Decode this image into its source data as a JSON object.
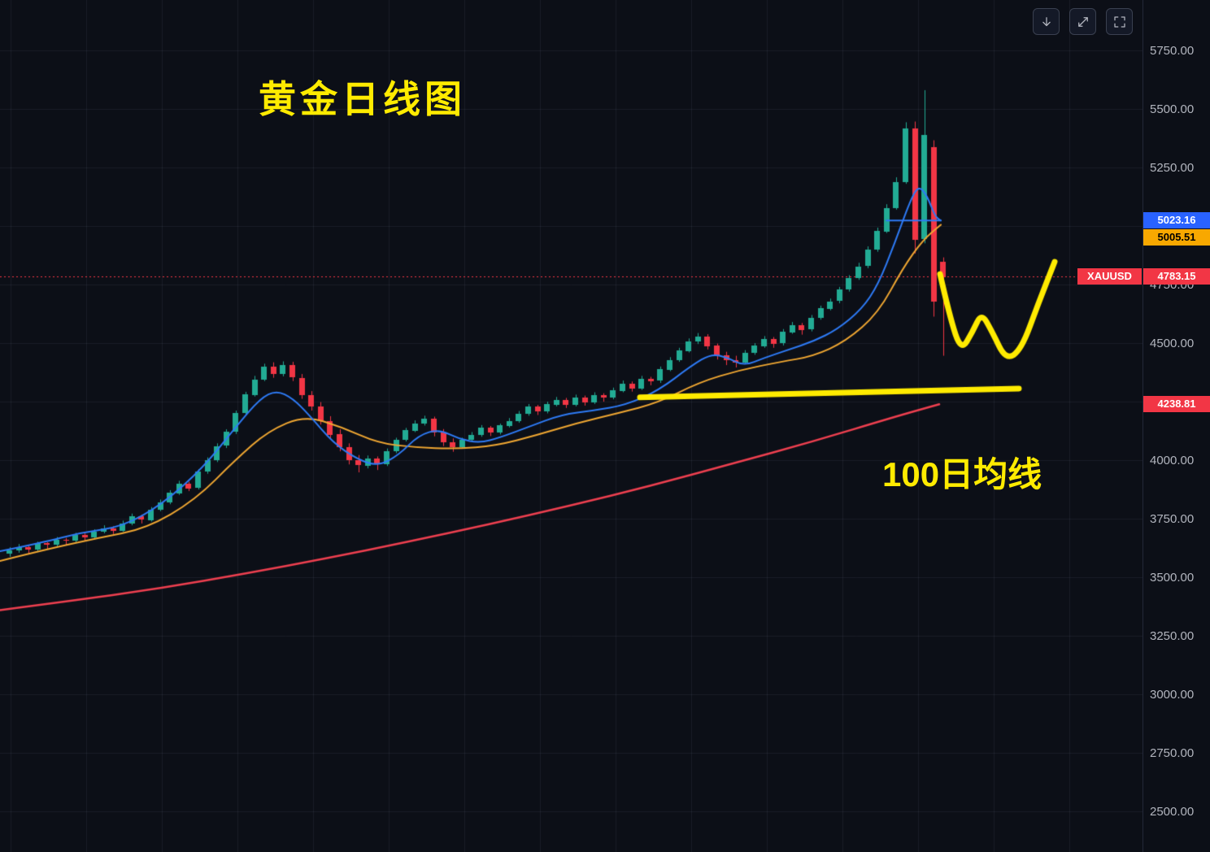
{
  "annotations": {
    "title": "黄金日线图",
    "ma_label": "100日均线"
  },
  "toolbar": {
    "buttons": [
      {
        "name": "scroll-down",
        "icon": "arrow-down-icon"
      },
      {
        "name": "maximize",
        "icon": "maximize-icon"
      },
      {
        "name": "fullscreen",
        "icon": "fullscreen-icon"
      }
    ]
  },
  "axis": {
    "ticks": [
      {
        "text": "5750.00",
        "price": 5750
      },
      {
        "text": "5500.00",
        "price": 5500
      },
      {
        "text": "5250.00",
        "price": 5250
      },
      {
        "text": "4750.00",
        "price": 4750
      },
      {
        "text": "4500.00",
        "price": 4500
      },
      {
        "text": "4000.00",
        "price": 4000
      },
      {
        "text": "3750.00",
        "price": 3750
      },
      {
        "text": "3500.00",
        "price": 3500
      },
      {
        "text": "3250.00",
        "price": 3250
      },
      {
        "text": "3000.00",
        "price": 3000
      },
      {
        "text": "2750.00",
        "price": 2750
      },
      {
        "text": "2500.00",
        "price": 2500
      }
    ]
  },
  "price_labels": [
    {
      "text": "5023.16",
      "price": 5023.16,
      "bg": "#2962ff",
      "fg": "#ffffff"
    },
    {
      "text": "5005.51",
      "price": 5005.51,
      "bg": "#f8a800",
      "fg": "#000000"
    },
    {
      "text": "4783.15",
      "price": 4783.15,
      "bg": "#f23645",
      "fg": "#ffffff",
      "symbol": "XAUUSD"
    },
    {
      "text": "4238.81",
      "price": 4238.81,
      "bg": "#f23645",
      "fg": "#ffffff"
    }
  ],
  "chart_data": {
    "type": "candlestick",
    "symbol": "XAUUSD",
    "last_price": 4783.15,
    "ylim": [
      2327,
      5965
    ],
    "x0": 8,
    "dx": 11.6,
    "candle_width": 7,
    "up_color": "#22ab94",
    "down_color": "#f23645",
    "grid": {
      "color": "rgba(150,160,185,0.10)",
      "v_start": 13,
      "v_step": 93,
      "h_prices": [
        5750,
        5500,
        5250,
        5000,
        4750,
        4500,
        4250,
        4000,
        3750,
        3500,
        3250,
        3000,
        2750,
        2500
      ]
    },
    "price_line": {
      "price": 4783.15,
      "color": "#f23645"
    },
    "candles": [
      [
        3600,
        3628,
        3588,
        3615
      ],
      [
        3615,
        3642,
        3605,
        3630
      ],
      [
        3630,
        3636,
        3600,
        3618
      ],
      [
        3618,
        3652,
        3610,
        3645
      ],
      [
        3645,
        3650,
        3622,
        3638
      ],
      [
        3638,
        3672,
        3630,
        3660
      ],
      [
        3660,
        3668,
        3638,
        3655
      ],
      [
        3655,
        3690,
        3648,
        3680
      ],
      [
        3680,
        3688,
        3655,
        3670
      ],
      [
        3670,
        3705,
        3662,
        3695
      ],
      [
        3695,
        3722,
        3688,
        3710
      ],
      [
        3710,
        3718,
        3685,
        3700
      ],
      [
        3700,
        3742,
        3694,
        3730
      ],
      [
        3730,
        3772,
        3722,
        3760
      ],
      [
        3760,
        3768,
        3730,
        3745
      ],
      [
        3745,
        3800,
        3738,
        3790
      ],
      [
        3790,
        3832,
        3782,
        3820
      ],
      [
        3820,
        3872,
        3812,
        3860
      ],
      [
        3860,
        3912,
        3852,
        3900
      ],
      [
        3900,
        3908,
        3868,
        3880
      ],
      [
        3880,
        3962,
        3875,
        3950
      ],
      [
        3950,
        4012,
        3942,
        4000
      ],
      [
        4000,
        4072,
        3992,
        4060
      ],
      [
        4060,
        4132,
        4052,
        4120
      ],
      [
        4120,
        4212,
        4112,
        4200
      ],
      [
        4200,
        4292,
        4192,
        4280
      ],
      [
        4280,
        4360,
        4272,
        4345
      ],
      [
        4345,
        4412,
        4338,
        4400
      ],
      [
        4400,
        4418,
        4352,
        4368
      ],
      [
        4368,
        4422,
        4358,
        4405
      ],
      [
        4405,
        4420,
        4338,
        4352
      ],
      [
        4352,
        4368,
        4262,
        4278
      ],
      [
        4278,
        4295,
        4212,
        4228
      ],
      [
        4228,
        4248,
        4152,
        4168
      ],
      [
        4168,
        4188,
        4092,
        4110
      ],
      [
        4110,
        4132,
        4038,
        4055
      ],
      [
        4055,
        4072,
        3982,
        4000
      ],
      [
        4000,
        4022,
        3948,
        3978
      ],
      [
        3978,
        4020,
        3965,
        4008
      ],
      [
        4008,
        4016,
        3958,
        3982
      ],
      [
        3982,
        4050,
        3975,
        4038
      ],
      [
        4038,
        4096,
        4030,
        4088
      ],
      [
        4088,
        4138,
        4080,
        4128
      ],
      [
        4128,
        4170,
        4120,
        4158
      ],
      [
        4158,
        4190,
        4148,
        4178
      ],
      [
        4178,
        4186,
        4102,
        4118
      ],
      [
        4118,
        4133,
        4060,
        4078
      ],
      [
        4078,
        4093,
        4036,
        4058
      ],
      [
        4058,
        4096,
        4050,
        4088
      ],
      [
        4088,
        4120,
        4080,
        4108
      ],
      [
        4108,
        4150,
        4100,
        4138
      ],
      [
        4138,
        4146,
        4103,
        4118
      ],
      [
        4118,
        4156,
        4110,
        4148
      ],
      [
        4148,
        4180,
        4140,
        4168
      ],
      [
        4168,
        4210,
        4160,
        4198
      ],
      [
        4198,
        4240,
        4190,
        4228
      ],
      [
        4228,
        4236,
        4193,
        4208
      ],
      [
        4208,
        4250,
        4200,
        4238
      ],
      [
        4238,
        4270,
        4230,
        4258
      ],
      [
        4258,
        4266,
        4223,
        4238
      ],
      [
        4238,
        4280,
        4230,
        4268
      ],
      [
        4268,
        4276,
        4233,
        4248
      ],
      [
        4248,
        4290,
        4240,
        4278
      ],
      [
        4278,
        4286,
        4250,
        4268
      ],
      [
        4268,
        4310,
        4260,
        4298
      ],
      [
        4298,
        4340,
        4290,
        4328
      ],
      [
        4328,
        4336,
        4293,
        4308
      ],
      [
        4308,
        4360,
        4300,
        4348
      ],
      [
        4348,
        4356,
        4320,
        4338
      ],
      [
        4338,
        4400,
        4330,
        4388
      ],
      [
        4388,
        4440,
        4380,
        4428
      ],
      [
        4428,
        4480,
        4420,
        4468
      ],
      [
        4468,
        4520,
        4460,
        4508
      ],
      [
        4508,
        4543,
        4496,
        4528
      ],
      [
        4528,
        4538,
        4473,
        4488
      ],
      [
        4488,
        4498,
        4430,
        4448
      ],
      [
        4448,
        4463,
        4406,
        4428
      ],
      [
        4428,
        4446,
        4396,
        4418
      ],
      [
        4418,
        4470,
        4410,
        4458
      ],
      [
        4458,
        4500,
        4450,
        4488
      ],
      [
        4488,
        4530,
        4480,
        4518
      ],
      [
        4518,
        4526,
        4480,
        4498
      ],
      [
        4498,
        4560,
        4490,
        4548
      ],
      [
        4548,
        4590,
        4540,
        4578
      ],
      [
        4578,
        4586,
        4536,
        4558
      ],
      [
        4558,
        4620,
        4550,
        4608
      ],
      [
        4608,
        4660,
        4600,
        4648
      ],
      [
        4648,
        4690,
        4640,
        4678
      ],
      [
        4678,
        4740,
        4670,
        4728
      ],
      [
        4728,
        4790,
        4720,
        4778
      ],
      [
        4778,
        4843,
        4770,
        4828
      ],
      [
        4828,
        4913,
        4820,
        4898
      ],
      [
        4898,
        4993,
        4890,
        4978
      ],
      [
        4978,
        5093,
        4970,
        5078
      ],
      [
        5078,
        5208,
        5070,
        5188
      ],
      [
        5188,
        5443,
        5180,
        5418
      ],
      [
        5418,
        5446,
        4883,
        4943
      ],
      [
        4943,
        5580,
        4926,
        5388
      ],
      [
        5338,
        5366,
        4613,
        4678
      ],
      [
        4848,
        4866,
        4446,
        4783.15
      ]
    ],
    "overlays": [
      {
        "name": "ma-fast",
        "color": "#2e7bf6",
        "width": 2,
        "end_value": 5023.16,
        "points": [
          [
            0,
            3611
          ],
          [
            50,
            3646
          ],
          [
            100,
            3691
          ],
          [
            150,
            3715
          ],
          [
            200,
            3812
          ],
          [
            250,
            3969
          ],
          [
            290,
            4142
          ],
          [
            320,
            4264
          ],
          [
            340,
            4298
          ],
          [
            360,
            4264
          ],
          [
            380,
            4194
          ],
          [
            410,
            4073
          ],
          [
            440,
            4003
          ],
          [
            465,
            3975
          ],
          [
            490,
            4021
          ],
          [
            515,
            4107
          ],
          [
            540,
            4132
          ],
          [
            565,
            4090
          ],
          [
            590,
            4073
          ],
          [
            615,
            4097
          ],
          [
            650,
            4142
          ],
          [
            690,
            4194
          ],
          [
            730,
            4212
          ],
          [
            770,
            4236
          ],
          [
            810,
            4298
          ],
          [
            850,
            4403
          ],
          [
            875,
            4455
          ],
          [
            895,
            4437
          ],
          [
            915,
            4403
          ],
          [
            940,
            4437
          ],
          [
            970,
            4472
          ],
          [
            1000,
            4507
          ],
          [
            1030,
            4559
          ],
          [
            1060,
            4646
          ],
          [
            1080,
            4750
          ],
          [
            1100,
            4924
          ],
          [
            1120,
            5115
          ],
          [
            1130,
            5172
          ],
          [
            1140,
            5130
          ],
          [
            1150,
            5040
          ],
          [
            1157,
            5023.16
          ]
        ]
      },
      {
        "name": "ma-mid",
        "color": "#f0a732",
        "width": 2,
        "end_value": 5005.51,
        "points": [
          [
            0,
            3570
          ],
          [
            60,
            3622
          ],
          [
            120,
            3667
          ],
          [
            180,
            3708
          ],
          [
            240,
            3830
          ],
          [
            290,
            4003
          ],
          [
            330,
            4125
          ],
          [
            375,
            4190
          ],
          [
            420,
            4142
          ],
          [
            465,
            4073
          ],
          [
            510,
            4055
          ],
          [
            560,
            4048
          ],
          [
            610,
            4062
          ],
          [
            660,
            4107
          ],
          [
            710,
            4159
          ],
          [
            760,
            4201
          ],
          [
            810,
            4246
          ],
          [
            860,
            4333
          ],
          [
            910,
            4385
          ],
          [
            960,
            4420
          ],
          [
            1000,
            4444
          ],
          [
            1040,
            4507
          ],
          [
            1080,
            4628
          ],
          [
            1110,
            4819
          ],
          [
            1135,
            4941
          ],
          [
            1157,
            5005.51
          ]
        ]
      },
      {
        "name": "ma-100",
        "color": "#ef4050",
        "width": 2.5,
        "end_value": 4238.81,
        "points": [
          [
            0,
            3360
          ],
          [
            100,
            3405
          ],
          [
            200,
            3455
          ],
          [
            300,
            3515
          ],
          [
            400,
            3580
          ],
          [
            500,
            3650
          ],
          [
            600,
            3725
          ],
          [
            700,
            3805
          ],
          [
            800,
            3890
          ],
          [
            900,
            3985
          ],
          [
            1000,
            4080
          ],
          [
            1100,
            4185
          ],
          [
            1155,
            4238.81
          ]
        ]
      }
    ],
    "drawings": {
      "support_line": {
        "color": "#ffeb00",
        "width": 7,
        "points": [
          [
            787,
            4268
          ],
          [
            1253,
            4306
          ]
        ]
      },
      "w_shape": {
        "color": "#ffeb00",
        "width": 7,
        "points": [
          [
            1156,
            4795
          ],
          [
            1168,
            4611
          ],
          [
            1182,
            4465
          ],
          [
            1196,
            4549
          ],
          [
            1207,
            4629
          ],
          [
            1220,
            4549
          ],
          [
            1237,
            4427
          ],
          [
            1256,
            4472
          ],
          [
            1277,
            4670
          ],
          [
            1297,
            4847
          ]
        ]
      },
      "ma_fast_price_segment": {
        "color": "#2e7bf6",
        "width": 2,
        "points": [
          [
            1090,
            5023.16
          ],
          [
            1157,
            5023.16
          ]
        ]
      }
    }
  }
}
